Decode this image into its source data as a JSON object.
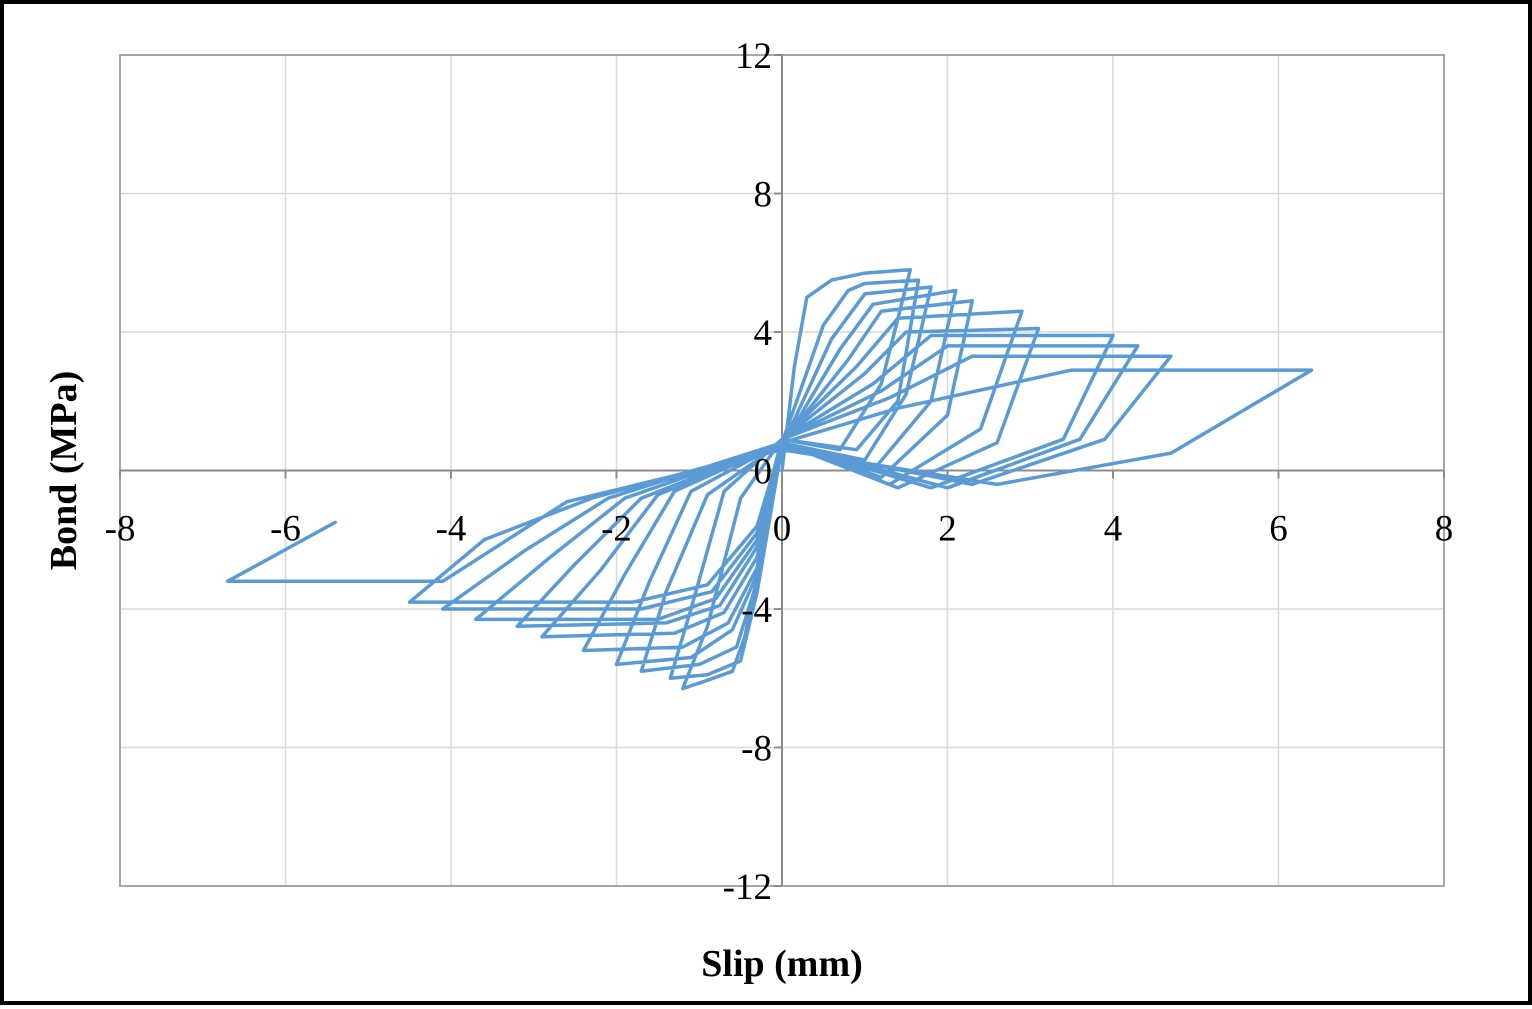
{
  "chart_data": {
    "type": "line",
    "title": "",
    "xlabel": "Slip (mm)",
    "ylabel": "Bond (MPa)",
    "xlim": [
      -8,
      8
    ],
    "ylim": [
      -12,
      12
    ],
    "x_ticks": [
      -8,
      -6,
      -4,
      -2,
      0,
      2,
      4,
      6,
      8
    ],
    "y_ticks": [
      12,
      8,
      4,
      0,
      -4,
      -8,
      -12
    ],
    "x_tick_labels": [
      "-8",
      "-6",
      "-4",
      "-2",
      "0",
      "2",
      "4",
      "6",
      "8"
    ],
    "y_tick_labels": [
      "12",
      "8",
      "4",
      "0",
      "-4",
      "-8",
      "-12"
    ],
    "grid": true,
    "legend": "none",
    "series_color": "#5b9bd5",
    "series": [
      {
        "values": [
          [
            0.0,
            0.0
          ],
          [
            0.15,
            3.0
          ],
          [
            0.3,
            5.0
          ],
          [
            0.6,
            5.5
          ],
          [
            1.0,
            5.7
          ],
          [
            1.55,
            5.8
          ],
          [
            1.2,
            2.5
          ],
          [
            0.7,
            0.6
          ],
          [
            0.0,
            0.9
          ],
          [
            -0.5,
            -0.8
          ],
          [
            -0.9,
            -4.5
          ],
          [
            -1.2,
            -6.3
          ],
          [
            -0.95,
            -6.1
          ],
          [
            -0.6,
            -5.8
          ],
          [
            -0.45,
            -4.8
          ],
          [
            -0.2,
            -2.0
          ],
          [
            0.0,
            0.8
          ],
          [
            0.5,
            4.2
          ],
          [
            0.8,
            5.2
          ],
          [
            1.0,
            5.4
          ],
          [
            1.65,
            5.5
          ],
          [
            1.4,
            2.0
          ],
          [
            0.9,
            0.6
          ],
          [
            0.0,
            0.9
          ],
          [
            -0.7,
            -0.6
          ],
          [
            -1.1,
            -4.0
          ],
          [
            -1.35,
            -6.0
          ],
          [
            -0.9,
            -5.9
          ],
          [
            -0.5,
            -5.5
          ],
          [
            -0.3,
            -3.5
          ],
          [
            0.0,
            0.7
          ],
          [
            0.6,
            3.8
          ],
          [
            1.0,
            5.1
          ],
          [
            1.8,
            5.3
          ],
          [
            1.5,
            2.2
          ],
          [
            1.0,
            0.3
          ],
          [
            0.0,
            0.8
          ],
          [
            -0.9,
            -0.7
          ],
          [
            -1.4,
            -3.5
          ],
          [
            -1.7,
            -5.8
          ],
          [
            -1.0,
            -5.6
          ],
          [
            -0.55,
            -5.1
          ],
          [
            -0.3,
            -3.2
          ],
          [
            0.0,
            0.7
          ],
          [
            0.7,
            3.5
          ],
          [
            1.1,
            4.8
          ],
          [
            2.1,
            5.2
          ],
          [
            1.8,
            2.0
          ],
          [
            1.1,
            0.0
          ],
          [
            0.0,
            0.8
          ],
          [
            -1.1,
            -0.6
          ],
          [
            -1.6,
            -3.2
          ],
          [
            -2.0,
            -5.6
          ],
          [
            -1.1,
            -5.4
          ],
          [
            -0.6,
            -4.6
          ],
          [
            -0.3,
            -3.0
          ],
          [
            0.0,
            0.8
          ],
          [
            0.8,
            3.2
          ],
          [
            1.2,
            4.6
          ],
          [
            2.3,
            4.9
          ],
          [
            2.0,
            1.6
          ],
          [
            1.2,
            -0.2
          ],
          [
            0.0,
            0.8
          ],
          [
            -1.3,
            -0.6
          ],
          [
            -1.9,
            -3.0
          ],
          [
            -2.4,
            -5.2
          ],
          [
            -1.2,
            -5.1
          ],
          [
            -0.65,
            -4.4
          ],
          [
            -0.3,
            -2.8
          ],
          [
            0.0,
            0.9
          ],
          [
            0.9,
            3.0
          ],
          [
            1.4,
            4.4
          ],
          [
            2.9,
            4.6
          ],
          [
            2.4,
            1.2
          ],
          [
            1.3,
            -0.4
          ],
          [
            0.0,
            0.8
          ],
          [
            -1.5,
            -0.7
          ],
          [
            -2.2,
            -2.9
          ],
          [
            -2.9,
            -4.8
          ],
          [
            -1.3,
            -4.7
          ],
          [
            -0.7,
            -4.1
          ],
          [
            -0.3,
            -2.5
          ],
          [
            0.0,
            0.9
          ],
          [
            1.0,
            2.8
          ],
          [
            1.5,
            4.0
          ],
          [
            3.1,
            4.1
          ],
          [
            2.6,
            0.8
          ],
          [
            1.4,
            -0.5
          ],
          [
            0.0,
            0.8
          ],
          [
            -1.7,
            -0.8
          ],
          [
            -2.5,
            -2.7
          ],
          [
            -3.2,
            -4.5
          ],
          [
            -1.4,
            -4.4
          ],
          [
            -0.75,
            -3.9
          ],
          [
            -0.3,
            -2.2
          ],
          [
            0.0,
            0.9
          ],
          [
            1.1,
            2.5
          ],
          [
            1.8,
            3.9
          ],
          [
            4.0,
            3.9
          ],
          [
            3.4,
            0.9
          ],
          [
            1.8,
            -0.5
          ],
          [
            0.0,
            0.8
          ],
          [
            -1.9,
            -0.8
          ],
          [
            -2.8,
            -2.5
          ],
          [
            -3.7,
            -4.3
          ],
          [
            -1.5,
            -4.3
          ],
          [
            -0.8,
            -3.7
          ],
          [
            -0.3,
            -2.0
          ],
          [
            0.0,
            0.9
          ],
          [
            1.2,
            2.3
          ],
          [
            2.0,
            3.6
          ],
          [
            4.3,
            3.6
          ],
          [
            3.6,
            0.9
          ],
          [
            2.0,
            -0.5
          ],
          [
            0.0,
            0.8
          ],
          [
            -2.1,
            -0.8
          ],
          [
            -3.1,
            -2.3
          ],
          [
            -4.1,
            -4.0
          ],
          [
            -1.7,
            -4.0
          ],
          [
            -0.85,
            -3.5
          ],
          [
            -0.3,
            -1.8
          ],
          [
            0.0,
            0.9
          ],
          [
            1.3,
            2.1
          ],
          [
            2.3,
            3.3
          ],
          [
            4.7,
            3.3
          ],
          [
            3.9,
            0.9
          ],
          [
            2.3,
            -0.4
          ],
          [
            0.0,
            0.7
          ],
          [
            -2.3,
            -0.8
          ],
          [
            -3.6,
            -2.0
          ],
          [
            -4.5,
            -3.8
          ],
          [
            -1.8,
            -3.8
          ],
          [
            -0.9,
            -3.3
          ],
          [
            -0.3,
            -1.6
          ],
          [
            0.0,
            0.8
          ],
          [
            1.4,
            1.8
          ],
          [
            3.5,
            2.9
          ],
          [
            6.4,
            2.9
          ],
          [
            4.7,
            0.5
          ],
          [
            2.6,
            -0.4
          ],
          [
            0.0,
            0.6
          ],
          [
            -2.6,
            -0.9
          ],
          [
            -4.1,
            -3.2
          ],
          [
            -6.7,
            -3.2
          ],
          [
            -5.4,
            -1.5
          ]
        ]
      }
    ]
  }
}
